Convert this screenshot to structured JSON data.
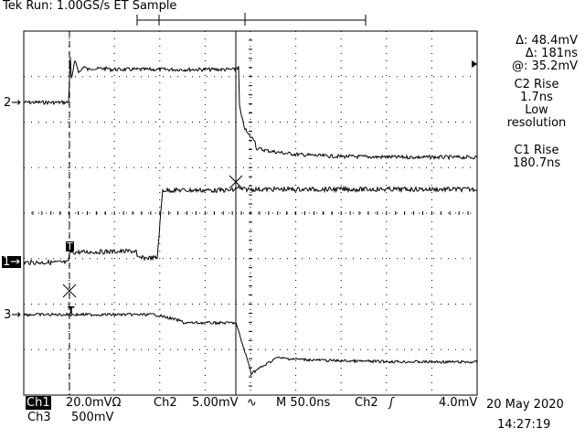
{
  "header": {
    "brand": "Tek",
    "mode": "Run: 1.00GS/s ET Sample"
  },
  "channel_markers": {
    "ch2": "2",
    "ch1": "1",
    "ch3": "3",
    "trigger": "T"
  },
  "readout": {
    "delta_v": "Δ: 48.4mV",
    "delta_t": "Δ: 181ns",
    "at_v": "@: 35.2mV",
    "c2_title": "C2 Rise",
    "c2_value": "1.7ns",
    "c2_note1": "Low",
    "c2_note2": "resolution",
    "c1_title": "C1 Rise",
    "c1_value": "180.7ns"
  },
  "status": {
    "ch1_label": "Ch1",
    "ch1_scale": "20.0mVΩ",
    "ch2_label": "Ch2",
    "ch2_scale": "5.00mV",
    "timebase": "M 50.0ns",
    "trig_source": "Ch2",
    "trig_level": "4.0mV",
    "ch3_label": "Ch3",
    "ch3_scale": "500mV",
    "date": "20 May 2020",
    "time": "14:27:19"
  },
  "colors": {
    "background": "#ffffff",
    "trace": "#000000",
    "graticule": "#000000"
  }
}
